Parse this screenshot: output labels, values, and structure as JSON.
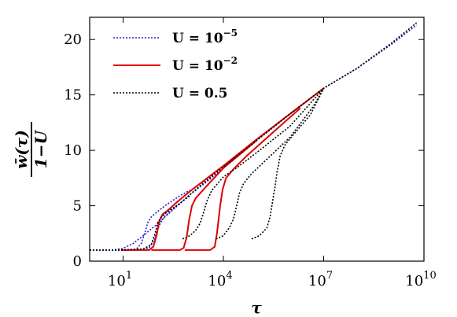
{
  "chart_data": {
    "type": "line",
    "xscale": "log",
    "xlim": [
      1,
      10000000000
    ],
    "ylim": [
      0,
      22
    ],
    "grid": false,
    "legend_position": "top-left",
    "xlabel": "τ",
    "ylabel": {
      "numerator": "w̄(τ)",
      "denominator": "1−U"
    },
    "x_ticks": [
      {
        "value": 10,
        "base": "10",
        "exp": "1"
      },
      {
        "value": 10000,
        "base": "10",
        "exp": "4"
      },
      {
        "value": 10000000,
        "base": "10",
        "exp": "7"
      },
      {
        "value": 10000000000,
        "base": "10",
        "exp": "10"
      }
    ],
    "y_ticks": [
      {
        "value": 0,
        "label": "0"
      },
      {
        "value": 5,
        "label": "5"
      },
      {
        "value": 10,
        "label": "10"
      },
      {
        "value": 15,
        "label": "15"
      },
      {
        "value": 20,
        "label": "20"
      }
    ],
    "series": [
      {
        "name": "U = 10^-5",
        "legend": {
          "prefix": "U = 10",
          "exp": "−5"
        },
        "color": "#1f1fd6",
        "style": "dotted",
        "curves": [
          [
            [
              1,
              1
            ],
            [
              5,
              1.02
            ],
            [
              10,
              1.15
            ],
            [
              20,
              1.6
            ],
            [
              40,
              2.3
            ],
            [
              100,
              3.3
            ],
            [
              300,
              4.6
            ],
            [
              1000,
              6.0
            ],
            [
              3000,
              7.1
            ],
            [
              10000,
              8.4
            ],
            [
              100000,
              10.9
            ],
            [
              1000000,
              13.3
            ],
            [
              10000000,
              15.6
            ],
            [
              100000000,
              17.4
            ],
            [
              1000000000,
              19.5
            ],
            [
              6000000000,
              21.3
            ]
          ],
          [
            [
              1,
              1
            ],
            [
              10,
              1
            ],
            [
              25,
              1.1
            ],
            [
              35,
              1.6
            ],
            [
              45,
              2.6
            ],
            [
              55,
              3.5
            ],
            [
              70,
              4.0
            ],
            [
              100,
              4.4
            ],
            [
              200,
              5.1
            ],
            [
              500,
              5.9
            ],
            [
              1000,
              6.4
            ]
          ],
          [
            [
              1,
              1
            ],
            [
              30,
              1
            ],
            [
              60,
              1.2
            ],
            [
              80,
              1.8
            ],
            [
              100,
              2.6
            ],
            [
              130,
              3.4
            ],
            [
              170,
              4.0
            ],
            [
              220,
              4.3
            ],
            [
              400,
              5.0
            ],
            [
              1000,
              5.9
            ]
          ]
        ]
      },
      {
        "name": "U = 10^-2",
        "legend": {
          "prefix": "U = 10",
          "exp": "−2"
        },
        "color": "#e00000",
        "style": "solid",
        "curves": [
          [
            [
              9,
              1
            ],
            [
              60,
              1
            ],
            [
              80,
              1.3
            ],
            [
              100,
              2.3
            ],
            [
              120,
              3.6
            ],
            [
              150,
              4.2
            ],
            [
              220,
              4.6
            ],
            [
              400,
              5.3
            ],
            [
              1000,
              6.3
            ],
            [
              3000,
              7.4
            ],
            [
              10000,
              8.6
            ],
            [
              100000,
              11.0
            ],
            [
              1000000,
              13.3
            ],
            [
              10000000,
              15.6
            ]
          ],
          [
            [
              70,
              1
            ],
            [
              500,
              1
            ],
            [
              650,
              1.2
            ],
            [
              800,
              2.2
            ],
            [
              950,
              3.8
            ],
            [
              1150,
              5.0
            ],
            [
              1500,
              5.7
            ],
            [
              3000,
              6.7
            ],
            [
              10000,
              8.4
            ],
            [
              100000,
              10.9
            ]
          ],
          [
            [
              700,
              1
            ],
            [
              4000,
              1
            ],
            [
              5500,
              1.3
            ],
            [
              6500,
              2.6
            ],
            [
              8000,
              5.0
            ],
            [
              9500,
              6.5
            ],
            [
              12000,
              7.5
            ],
            [
              20000,
              8.3
            ],
            [
              50000,
              9.5
            ],
            [
              300000,
              11.6
            ],
            [
              2000000,
              13.8
            ]
          ]
        ]
      },
      {
        "name": "U = 0.5",
        "legend": {
          "prefix": "U = 0.5",
          "exp": ""
        },
        "color": "#000000",
        "style": "dotted",
        "curves": [
          [
            [
              1,
              1
            ],
            [
              10,
              1
            ],
            [
              40,
              1.1
            ],
            [
              70,
              1.5
            ],
            [
              90,
              2.5
            ],
            [
              110,
              3.5
            ],
            [
              140,
              4.0
            ],
            [
              200,
              4.4
            ],
            [
              500,
              5.2
            ],
            [
              2000,
              6.8
            ],
            [
              10000,
              8.5
            ],
            [
              100000,
              10.9
            ],
            [
              1000000,
              13.3
            ],
            [
              10000000,
              15.6
            ],
            [
              100000000,
              17.4
            ],
            [
              1000000000,
              19.6
            ],
            [
              6000000000,
              21.5
            ]
          ],
          [
            [
              600,
              2.0
            ],
            [
              1000,
              2.3
            ],
            [
              1500,
              2.8
            ],
            [
              2000,
              3.4
            ],
            [
              2500,
              4.3
            ],
            [
              3200,
              5.4
            ],
            [
              4500,
              6.4
            ],
            [
              10000,
              7.6
            ],
            [
              30000,
              8.6
            ],
            [
              100000,
              9.8
            ],
            [
              1000000,
              12.2
            ],
            [
              10000000,
              15.6
            ]
          ],
          [
            [
              6000,
              2.0
            ],
            [
              10000,
              2.3
            ],
            [
              15000,
              3.0
            ],
            [
              20000,
              3.8
            ],
            [
              25000,
              5.0
            ],
            [
              30000,
              6.1
            ],
            [
              40000,
              7.0
            ],
            [
              70000,
              7.9
            ],
            [
              200000,
              9.2
            ],
            [
              1000000,
              11.2
            ],
            [
              5000000,
              14.0
            ],
            [
              10000000,
              15.6
            ]
          ],
          [
            [
              70000,
              2.0
            ],
            [
              120000,
              2.3
            ],
            [
              200000,
              3.0
            ],
            [
              250000,
              4.0
            ],
            [
              300000,
              5.5
            ],
            [
              350000,
              6.7
            ],
            [
              400000,
              8.0
            ],
            [
              500000,
              9.5
            ],
            [
              700000,
              10.5
            ],
            [
              1500000,
              11.7
            ],
            [
              4000000,
              13.2
            ],
            [
              10000000,
              15.6
            ]
          ]
        ]
      }
    ]
  }
}
